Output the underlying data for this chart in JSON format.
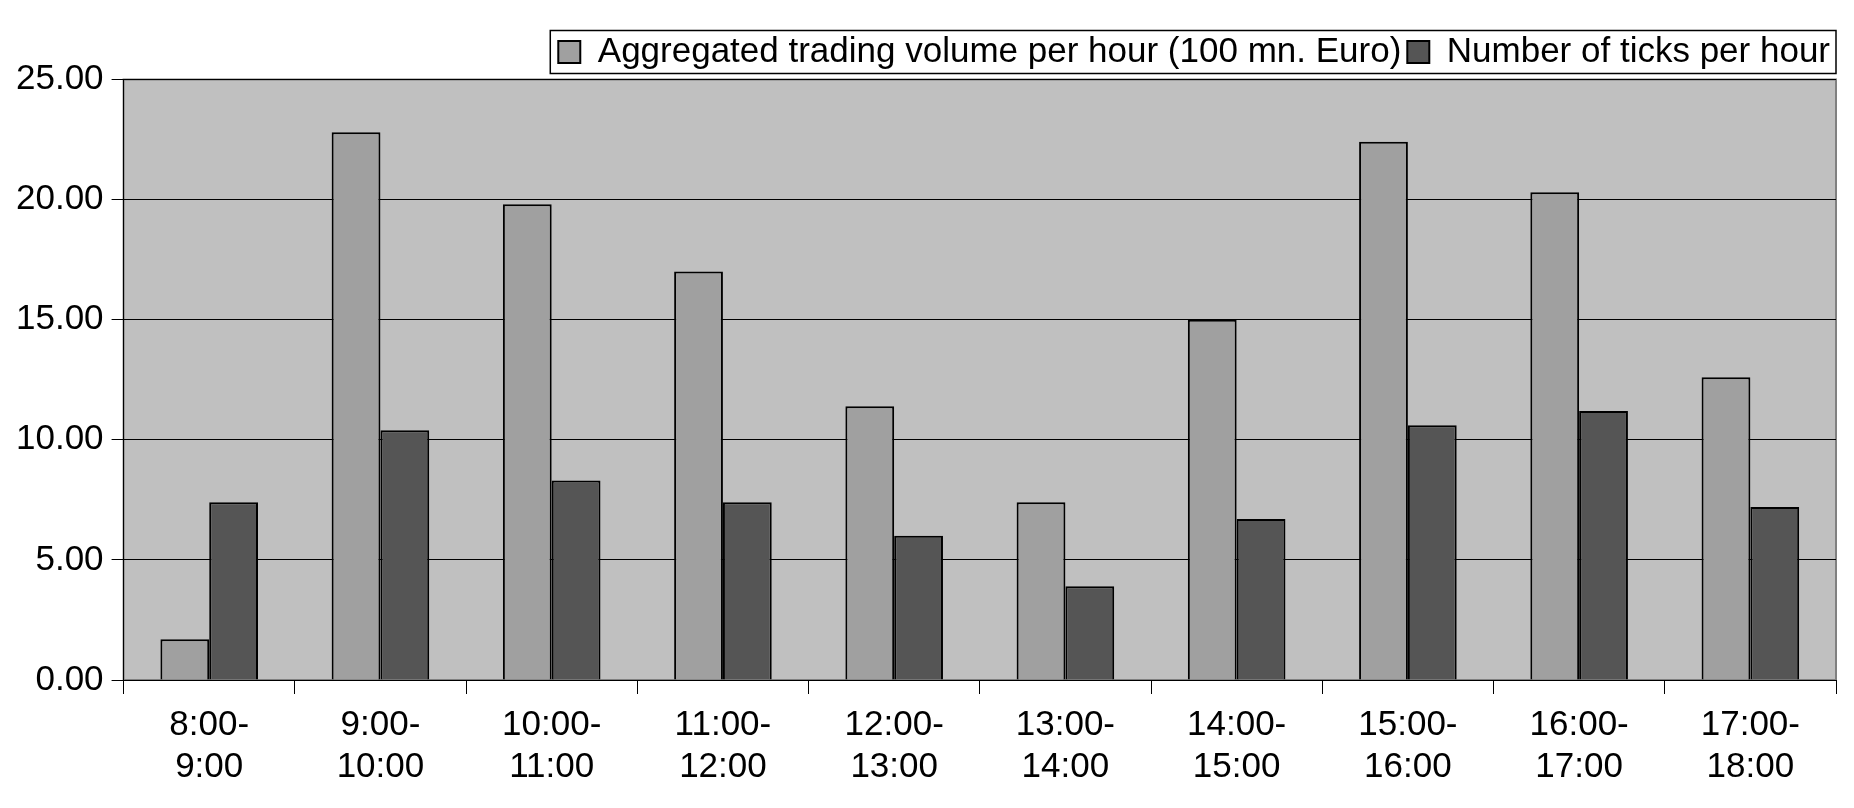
{
  "chart_data": {
    "type": "bar",
    "categories": [
      "8:00-9:00",
      "9:00-10:00",
      "10:00-11:00",
      "11:00-12:00",
      "12:00-13:00",
      "13:00-14:00",
      "14:00-15:00",
      "15:00-16:00",
      "16:00-17:00",
      "17:00-18:00"
    ],
    "series": [
      {
        "name": "Aggregated trading volume per hour (100 mn. Euro)",
        "color": "#a0a0a0",
        "values": [
          1.7,
          22.8,
          19.8,
          17.0,
          11.4,
          7.4,
          15.0,
          22.4,
          20.3,
          12.6
        ]
      },
      {
        "name": "Number of ticks per hour",
        "color": "#555555",
        "values": [
          7.4,
          10.4,
          8.3,
          7.4,
          6.0,
          3.9,
          6.7,
          10.6,
          11.2,
          7.2
        ]
      }
    ],
    "ylim": [
      0,
      25
    ],
    "yticks": [
      {
        "value": 0,
        "label": "0.00"
      },
      {
        "value": 5,
        "label": "5.00"
      },
      {
        "value": 10,
        "label": "10.00"
      },
      {
        "value": 15,
        "label": "15.00"
      },
      {
        "value": 20,
        "label": "20.00"
      },
      {
        "value": 25,
        "label": "25.00"
      }
    ],
    "grid": "y",
    "legend": "top right"
  }
}
